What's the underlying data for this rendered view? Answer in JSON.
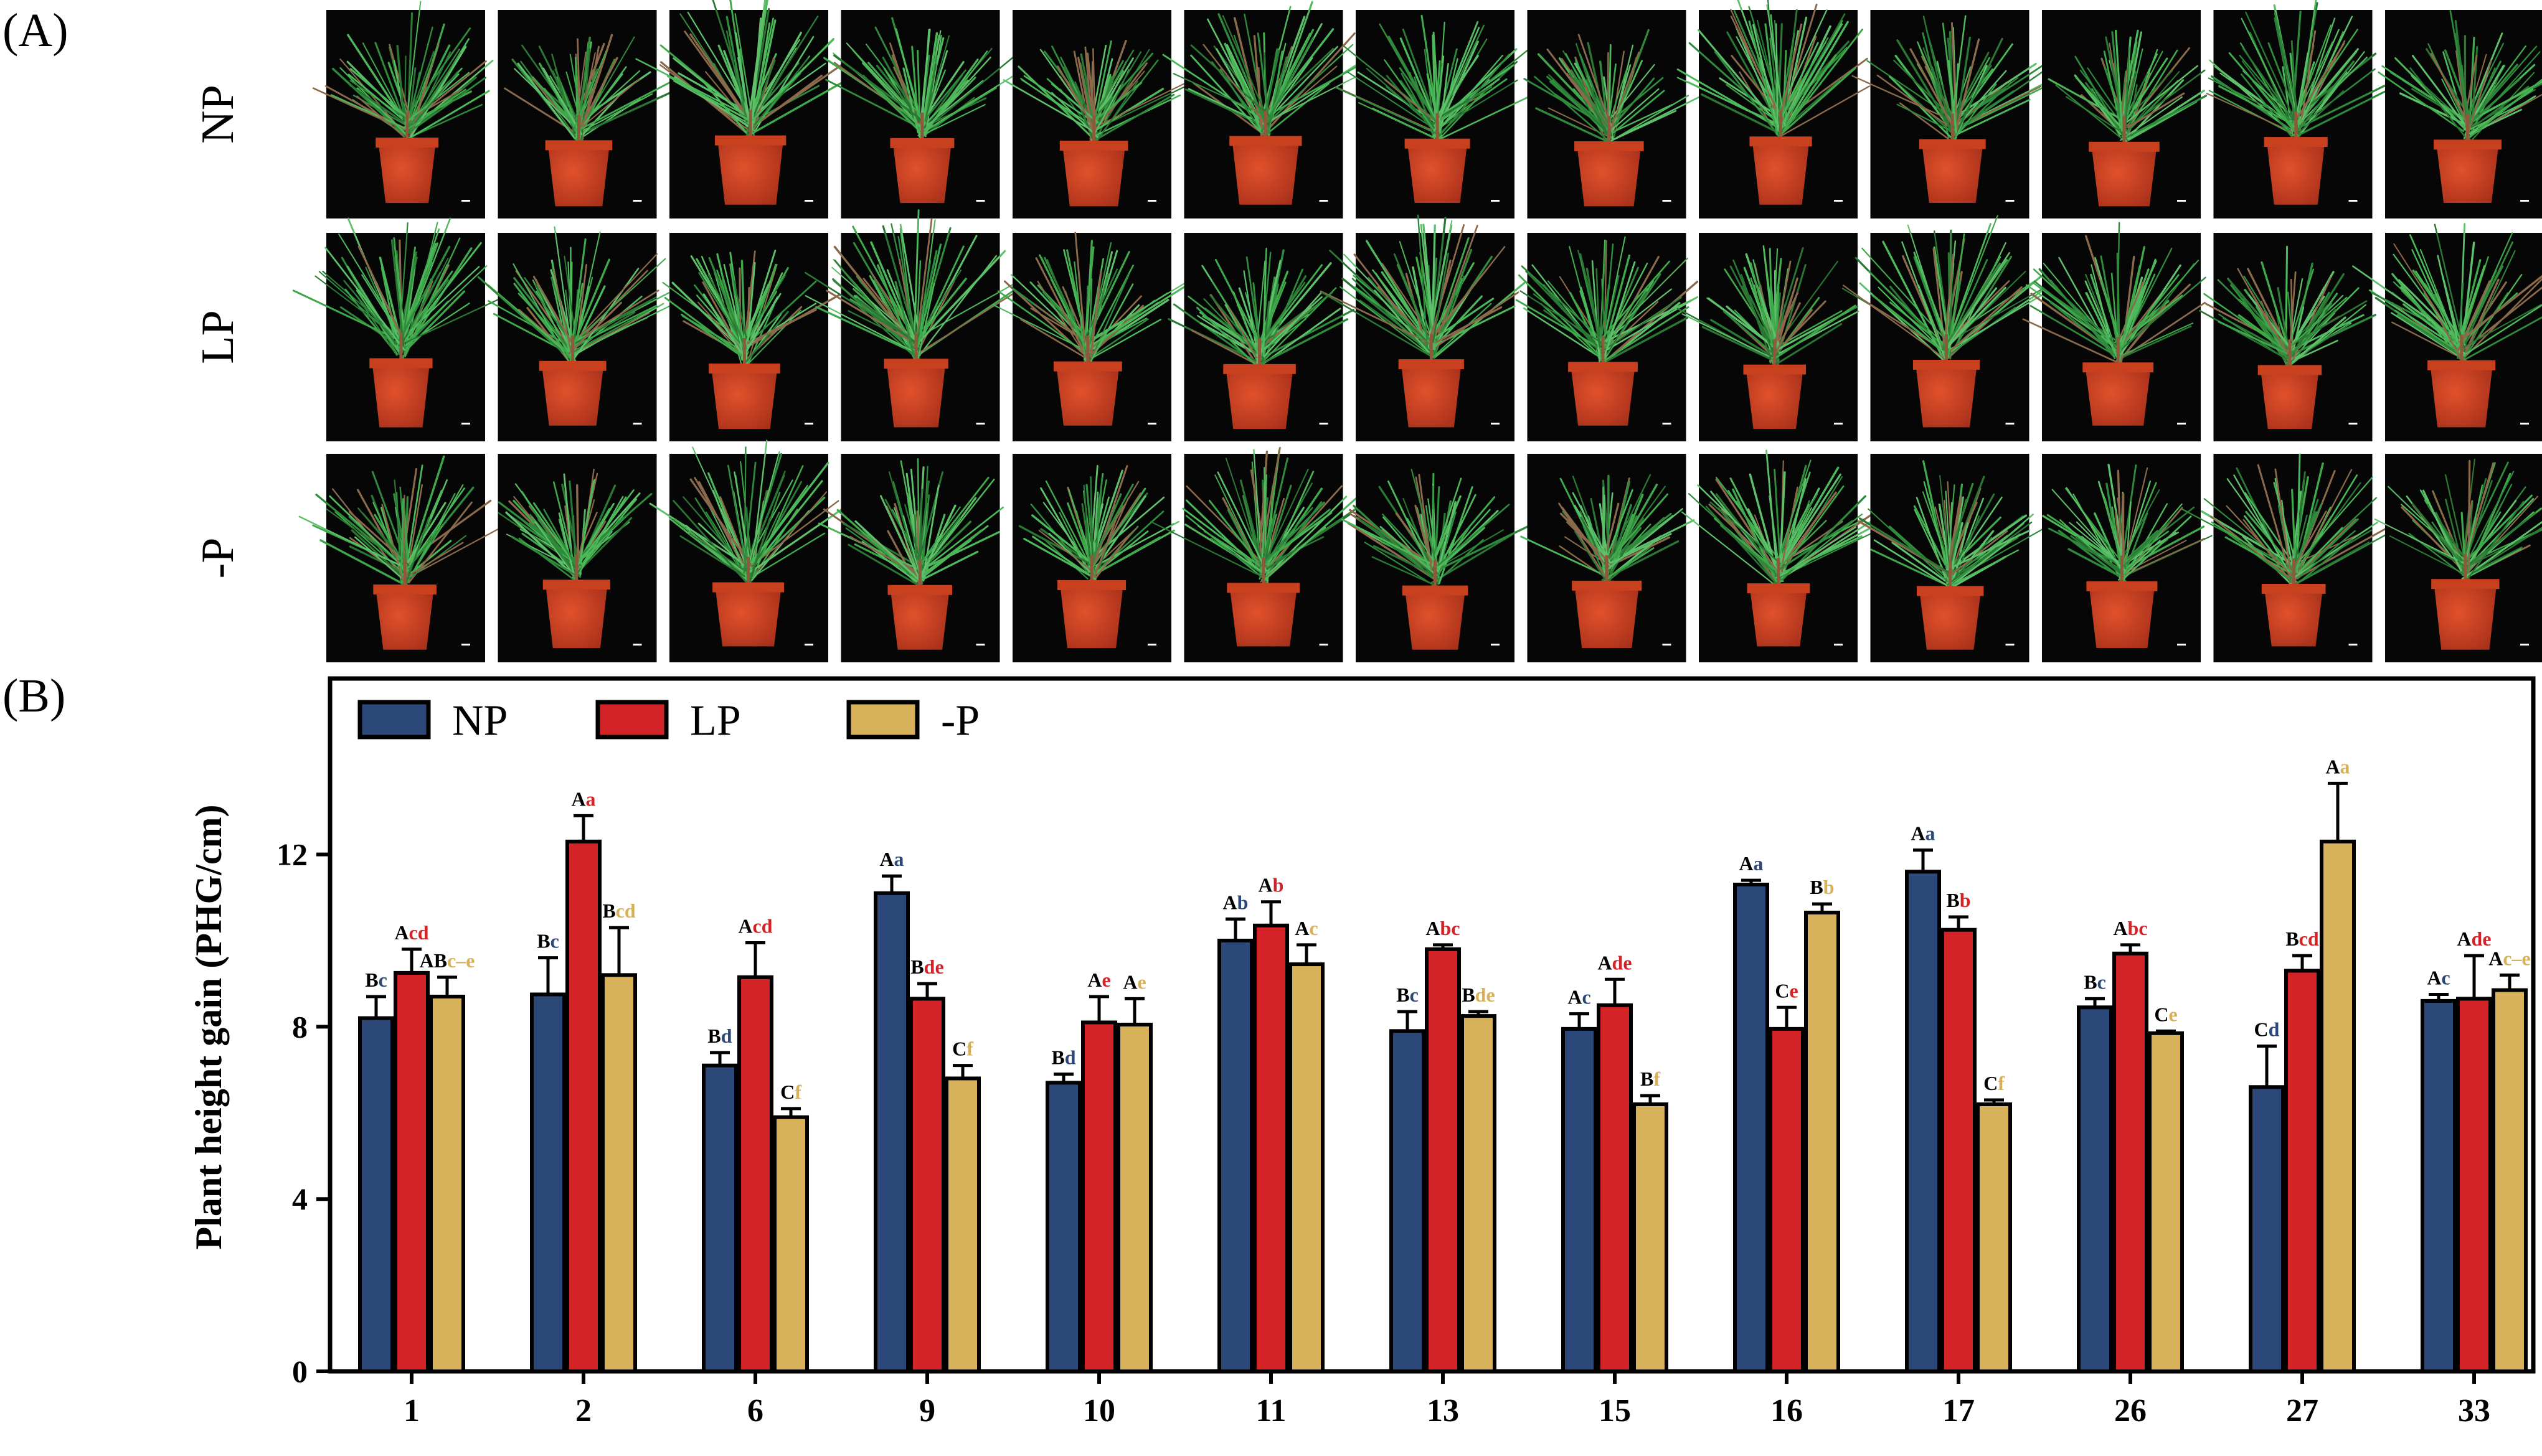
{
  "panels": {
    "a": "(A)",
    "b": "(B)"
  },
  "photo_grid": {
    "rows": [
      "NP",
      "LP",
      "-P"
    ],
    "columns": [
      "1",
      "2",
      "6",
      "9",
      "10",
      "11",
      "13",
      "15",
      "16",
      "17",
      "26",
      "27",
      "33"
    ]
  },
  "colors": {
    "NP": "#2b4878",
    "LP": "#d42327",
    "-P": "#d7b25a"
  },
  "chart_data": {
    "type": "bar",
    "title": "",
    "xlabel": "",
    "ylabel": "Plant height gain (PHG/cm)",
    "ylim": [
      0,
      16
    ],
    "yticks": [
      0,
      4,
      8,
      12
    ],
    "legend": {
      "placement": "top-left",
      "entries": [
        "NP",
        "LP",
        "-P"
      ]
    },
    "categories": [
      "1",
      "2",
      "6",
      "9",
      "10",
      "11",
      "13",
      "15",
      "16",
      "17",
      "26",
      "27",
      "33"
    ],
    "series": [
      {
        "name": "NP",
        "values": [
          8.2,
          8.75,
          7.1,
          11.1,
          6.7,
          10.0,
          7.9,
          7.95,
          11.3,
          11.6,
          8.45,
          6.6,
          8.6
        ],
        "errors": [
          0.5,
          0.85,
          0.3,
          0.4,
          0.2,
          0.5,
          0.45,
          0.35,
          0.1,
          0.5,
          0.2,
          0.95,
          0.15
        ],
        "major_letters": [
          "B",
          "B",
          "B",
          "A",
          "B",
          "A",
          "B",
          "A",
          "A",
          "A",
          "B",
          "C",
          "A"
        ],
        "minor_letters": [
          "c",
          "c",
          "d",
          "a",
          "d",
          "b",
          "c",
          "c",
          "a",
          "a",
          "c",
          "d",
          "c"
        ]
      },
      {
        "name": "LP",
        "values": [
          9.25,
          12.3,
          9.15,
          8.65,
          8.1,
          10.35,
          9.8,
          8.5,
          7.95,
          10.25,
          9.7,
          9.3,
          8.65
        ],
        "errors": [
          0.55,
          0.6,
          0.8,
          0.35,
          0.6,
          0.55,
          0.1,
          0.6,
          0.5,
          0.3,
          0.2,
          0.35,
          1.0
        ],
        "major_letters": [
          "A",
          "A",
          "A",
          "B",
          "A",
          "A",
          "A",
          "A",
          "C",
          "B",
          "A",
          "B",
          "A"
        ],
        "minor_letters": [
          "cd",
          "a",
          "cd",
          "de",
          "e",
          "b",
          "bc",
          "de",
          "e",
          "b",
          "bc",
          "cd",
          "de"
        ]
      },
      {
        "name": "-P",
        "values": [
          8.7,
          9.2,
          5.9,
          6.8,
          8.05,
          9.45,
          8.25,
          6.2,
          10.65,
          6.2,
          7.85,
          12.3,
          8.85
        ],
        "errors": [
          0.45,
          1.1,
          0.2,
          0.3,
          0.6,
          0.45,
          0.1,
          0.2,
          0.2,
          0.1,
          0.05,
          1.35,
          0.35
        ],
        "major_letters": [
          "AB",
          "B",
          "C",
          "C",
          "A",
          "A",
          "B",
          "B",
          "B",
          "C",
          "C",
          "A",
          "A"
        ],
        "minor_letters": [
          "c–e",
          "cd",
          "f",
          "f",
          "e",
          "c",
          "de",
          "f",
          "b",
          "f",
          "e",
          "a",
          "c–e"
        ]
      }
    ]
  }
}
